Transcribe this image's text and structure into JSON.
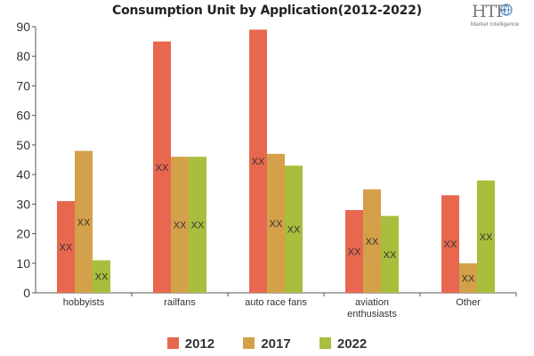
{
  "logo": {
    "text": "HTF",
    "subtext": "Market Intelligence"
  },
  "chart_data": {
    "type": "bar",
    "title": "Consumption Unit by  Application(2012-2022)",
    "categories": [
      "hobbyists",
      "railfans",
      "auto race fans",
      "aviation enthusiasts",
      "Other"
    ],
    "series": [
      {
        "name": "2012",
        "color": "#e8674f",
        "values": [
          31,
          85,
          89,
          28,
          33
        ],
        "labels": [
          "XX",
          "XX",
          "XX",
          "XX",
          "XX"
        ]
      },
      {
        "name": "2017",
        "color": "#d4a04a",
        "values": [
          48,
          46,
          47,
          35,
          10
        ],
        "labels": [
          "XX",
          "XX",
          "XX",
          "XX",
          "XX"
        ]
      },
      {
        "name": "2022",
        "color": "#a8be3c",
        "values": [
          11,
          46,
          43,
          26,
          38
        ],
        "labels": [
          "XX",
          "XX",
          "XX",
          "XX",
          "XX"
        ]
      }
    ],
    "ylim": [
      0,
      90
    ],
    "yticks": [
      0,
      10,
      20,
      30,
      40,
      50,
      60,
      70,
      80,
      90
    ],
    "xlabel": "",
    "ylabel": "",
    "grid": false,
    "legend": "bottom"
  }
}
